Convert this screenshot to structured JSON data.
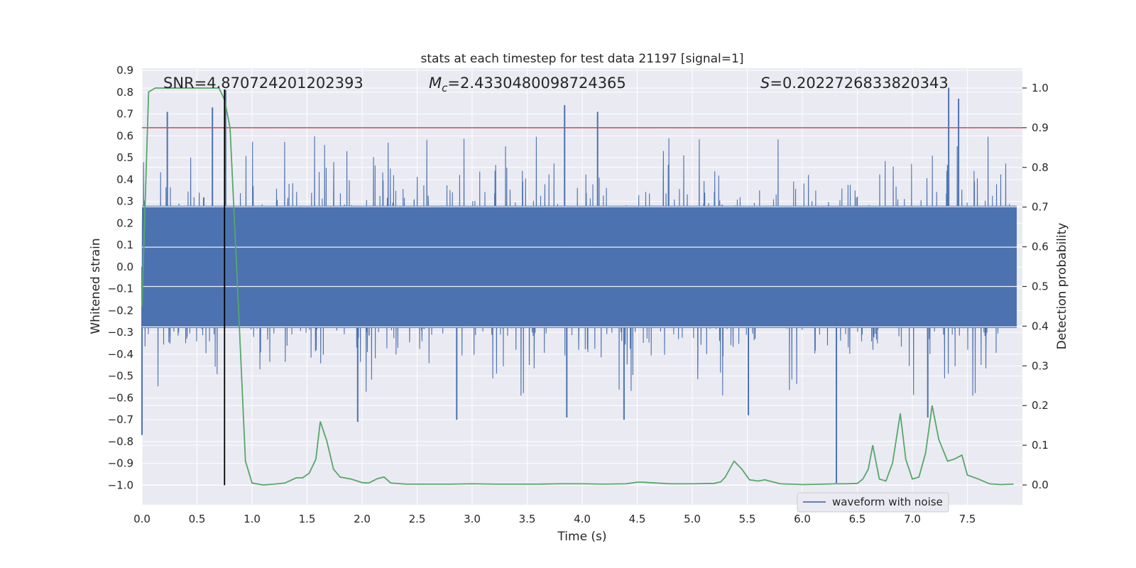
{
  "chart_data": {
    "type": "line",
    "title": "stats at each timestep for test data 21197 [signal=1]",
    "xlabel": "Time (s)",
    "ylabel": "Whitened strain",
    "ylabel_right": "Detection probability",
    "xlim": [
      0.0,
      8.0
    ],
    "ylim": [
      -1.09,
      0.91
    ],
    "ylim_right": [
      -0.05,
      1.05
    ],
    "x_ticks": [
      "0.0",
      "0.5",
      "1.0",
      "1.5",
      "2.0",
      "2.5",
      "3.0",
      "3.5",
      "4.0",
      "4.5",
      "5.0",
      "5.5",
      "6.0",
      "6.5",
      "7.0",
      "7.5"
    ],
    "x_tick_values": [
      0.0,
      0.5,
      1.0,
      1.5,
      2.0,
      2.5,
      3.0,
      3.5,
      4.0,
      4.5,
      5.0,
      5.5,
      6.0,
      6.5,
      7.0,
      7.5
    ],
    "y_ticks": [
      "0.9",
      "0.8",
      "0.7",
      "0.6",
      "0.5",
      "0.4",
      "0.3",
      "0.2",
      "0.1",
      "0.0",
      "−0.1",
      "−0.2",
      "−0.3",
      "−0.4",
      "−0.5",
      "−0.6",
      "−0.7",
      "−0.8",
      "−0.9",
      "−1.0"
    ],
    "y_tick_values": [
      0.9,
      0.8,
      0.7,
      0.6,
      0.5,
      0.4,
      0.3,
      0.2,
      0.1,
      0.0,
      -0.1,
      -0.2,
      -0.3,
      -0.4,
      -0.5,
      -0.6,
      -0.7,
      -0.8,
      -0.9,
      -1.0
    ],
    "y_right_ticks": [
      "1.0",
      "0.9",
      "0.8",
      "0.7",
      "0.6",
      "0.5",
      "0.4",
      "0.3",
      "0.2",
      "0.1",
      "0.0"
    ],
    "y_right_tick_values": [
      1.0,
      0.9,
      0.8,
      0.7,
      0.6,
      0.5,
      0.4,
      0.3,
      0.2,
      0.1,
      0.0
    ],
    "grid": true,
    "legend": {
      "entries": [
        "waveform with noise"
      ],
      "placement": "lower-right"
    },
    "annotations": {
      "snr": "SNR=4.870724201202393",
      "mc_symbol": "M",
      "mc_sub": "c",
      "mc_value": "=2.4330480098724365",
      "s_symbol": "S",
      "s_value": "=0.2022726833820343"
    },
    "threshold_probability": 0.9,
    "marker_time": 0.75,
    "series": [
      {
        "name": "waveform with noise",
        "axis": "left",
        "style": "dense-noise",
        "envelope_core": 0.28,
        "notable_spikes": [
          {
            "x": 0.23,
            "y": 0.71
          },
          {
            "x": 0.64,
            "y": 0.73
          },
          {
            "x": 0.76,
            "y": 0.81
          },
          {
            "x": 3.84,
            "y": 0.74
          },
          {
            "x": 4.14,
            "y": 0.71
          },
          {
            "x": 7.33,
            "y": 0.82
          },
          {
            "x": 7.42,
            "y": 0.77
          },
          {
            "x": 6.31,
            "y": -0.99
          },
          {
            "x": 0.0,
            "y": -0.77
          },
          {
            "x": 1.96,
            "y": -0.71
          },
          {
            "x": 2.86,
            "y": -0.7
          },
          {
            "x": 3.86,
            "y": -0.69
          },
          {
            "x": 4.38,
            "y": -0.7
          },
          {
            "x": 5.51,
            "y": -0.68
          },
          {
            "x": 7.14,
            "y": -0.69
          }
        ]
      },
      {
        "name": "",
        "axis": "right",
        "x": [
          0.0,
          0.06,
          0.12,
          0.2,
          0.3,
          0.4,
          0.5,
          0.6,
          0.7,
          0.75,
          0.8,
          0.86,
          0.94,
          1.0,
          1.1,
          1.2,
          1.3,
          1.4,
          1.46,
          1.52,
          1.58,
          1.62,
          1.68,
          1.74,
          1.8,
          1.9,
          2.0,
          2.06,
          2.14,
          2.2,
          2.26,
          2.4,
          2.6,
          2.8,
          3.0,
          3.2,
          3.4,
          3.6,
          3.8,
          4.0,
          4.2,
          4.4,
          4.5,
          4.55,
          4.6,
          4.8,
          5.0,
          5.2,
          5.26,
          5.3,
          5.38,
          5.45,
          5.52,
          5.6,
          5.66,
          5.7,
          5.8,
          5.9,
          6.0,
          6.2,
          6.3,
          6.4,
          6.5,
          6.55,
          6.6,
          6.64,
          6.7,
          6.76,
          6.82,
          6.89,
          6.94,
          7.0,
          7.06,
          7.12,
          7.18,
          7.24,
          7.32,
          7.38,
          7.45,
          7.5,
          7.6,
          7.7,
          7.8,
          7.92
        ],
        "y": [
          0.45,
          0.99,
          1.0,
          1.0,
          1.0,
          1.0,
          1.0,
          1.0,
          1.0,
          0.97,
          0.9,
          0.55,
          0.06,
          0.005,
          0.0,
          0.002,
          0.005,
          0.018,
          0.018,
          0.03,
          0.065,
          0.16,
          0.11,
          0.04,
          0.02,
          0.015,
          0.006,
          0.005,
          0.016,
          0.02,
          0.005,
          0.002,
          0.002,
          0.002,
          0.003,
          0.002,
          0.002,
          0.002,
          0.003,
          0.003,
          0.002,
          0.003,
          0.007,
          0.007,
          0.006,
          0.003,
          0.003,
          0.004,
          0.008,
          0.02,
          0.06,
          0.04,
          0.013,
          0.01,
          0.013,
          0.01,
          0.003,
          0.002,
          0.001,
          0.002,
          0.003,
          0.003,
          0.004,
          0.015,
          0.04,
          0.1,
          0.015,
          0.01,
          0.055,
          0.18,
          0.065,
          0.015,
          0.02,
          0.08,
          0.2,
          0.115,
          0.06,
          0.065,
          0.075,
          0.025,
          0.015,
          0.003,
          0.001,
          0.002
        ]
      }
    ],
    "colors": {
      "waveform": "#4c72b0",
      "probability": "#55a868",
      "threshold": "#c44e52",
      "marker": "#000000",
      "plot_bg": "#eaeaf2",
      "grid": "#ffffff"
    }
  }
}
